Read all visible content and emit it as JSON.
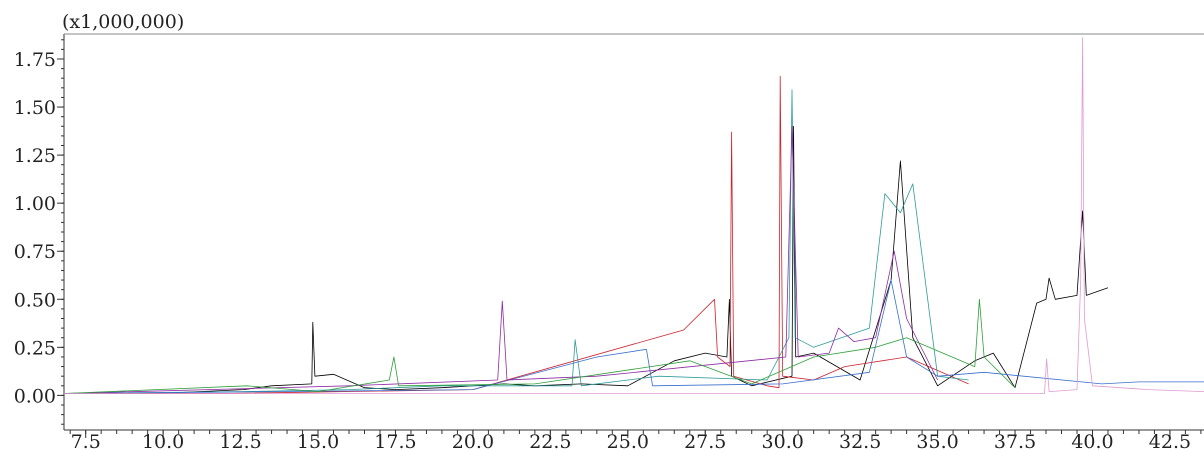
{
  "chart_data": {
    "type": "line",
    "title": "",
    "xlabel": "",
    "ylabel": "",
    "y_multiplier_label": "(x1,000,000)",
    "xlim": [
      6.8,
      43.6
    ],
    "ylim": [
      -0.18,
      1.88
    ],
    "x_ticks": [
      7.5,
      10.0,
      12.5,
      15.0,
      17.5,
      20.0,
      22.5,
      25.0,
      27.5,
      30.0,
      32.5,
      35.0,
      37.5,
      40.0,
      42.5
    ],
    "x_tick_labels": [
      "7.5",
      "10.0",
      "12.5",
      "15.0",
      "17.5",
      "20.0",
      "22.5",
      "25.0",
      "27.5",
      "30.0",
      "32.5",
      "35.0",
      "37.5",
      "40.0",
      "42.5"
    ],
    "y_ticks": [
      0.0,
      0.25,
      0.5,
      0.75,
      1.0,
      1.25,
      1.5,
      1.75
    ],
    "y_tick_labels": [
      "0.00",
      "0.25",
      "0.50",
      "0.75",
      "1.00",
      "1.25",
      "1.50",
      "1.75"
    ],
    "grid": false,
    "legend": "none",
    "series": [
      {
        "color": "#000000",
        "x": [
          6.8,
          9.8,
          12.6,
          13.5,
          14.8,
          14.83,
          14.9,
          15.5,
          16.5,
          17.5,
          19.0,
          20.0,
          21.0,
          22.0,
          23.5,
          25.0,
          26.5,
          27.5,
          28.2,
          28.28,
          28.35,
          29.0,
          30.3,
          30.35,
          30.42,
          31.0,
          32.5,
          33.5,
          33.8,
          34.2,
          35.0,
          36.2,
          36.8,
          37.5,
          38.2,
          38.5,
          38.6,
          38.8,
          39.5,
          39.68,
          39.8,
          40.5
        ],
        "y": [
          0.01,
          0.01,
          0.03,
          0.05,
          0.06,
          0.38,
          0.1,
          0.11,
          0.04,
          0.03,
          0.04,
          0.05,
          0.06,
          0.05,
          0.06,
          0.05,
          0.18,
          0.22,
          0.2,
          0.5,
          0.1,
          0.05,
          0.1,
          1.4,
          0.2,
          0.22,
          0.08,
          0.6,
          1.22,
          0.3,
          0.05,
          0.18,
          0.22,
          0.04,
          0.48,
          0.5,
          0.61,
          0.5,
          0.52,
          0.96,
          0.52,
          0.56
        ]
      },
      {
        "color": "#d0202a",
        "x": [
          6.8,
          12.0,
          20.0,
          26.8,
          27.8,
          27.9,
          28.3,
          28.35,
          28.42,
          29.5,
          29.88,
          29.92,
          30.0,
          31.0,
          32.0,
          34.0,
          36.0
        ],
        "y": [
          0.01,
          0.01,
          0.03,
          0.34,
          0.5,
          0.2,
          0.15,
          1.37,
          0.1,
          0.05,
          0.04,
          1.66,
          0.1,
          0.08,
          0.15,
          0.2,
          0.06
        ]
      },
      {
        "color": "#2e9b9b",
        "x": [
          6.8,
          12.5,
          16.0,
          19.0,
          23.2,
          23.3,
          23.5,
          26.0,
          29.5,
          30.2,
          30.3,
          30.4,
          31.0,
          32.8,
          33.3,
          33.8,
          34.2,
          35.0,
          36.0
        ],
        "y": [
          0.01,
          0.02,
          0.03,
          0.05,
          0.05,
          0.29,
          0.05,
          0.1,
          0.08,
          0.3,
          1.59,
          0.3,
          0.25,
          0.35,
          1.05,
          0.95,
          1.1,
          0.1,
          0.08
        ]
      },
      {
        "color": "#3a6fcf",
        "x": [
          6.8,
          14.0,
          20.0,
          24.0,
          25.6,
          25.8,
          30.0,
          32.8,
          33.5,
          34.0,
          35.0,
          36.5,
          40.3,
          41.5,
          43.6
        ],
        "y": [
          0.01,
          0.02,
          0.03,
          0.2,
          0.24,
          0.05,
          0.06,
          0.12,
          0.6,
          0.2,
          0.1,
          0.12,
          0.06,
          0.07,
          0.07
        ]
      },
      {
        "color": "#8e2aa3",
        "x": [
          6.8,
          16.0,
          20.8,
          20.95,
          21.1,
          24.0,
          30.1,
          30.3,
          30.5,
          31.5,
          31.8,
          32.3,
          33.0,
          33.6,
          34.0,
          35.0
        ],
        "y": [
          0.01,
          0.05,
          0.08,
          0.49,
          0.08,
          0.1,
          0.2,
          1.4,
          0.2,
          0.22,
          0.35,
          0.28,
          0.3,
          0.75,
          0.4,
          0.08
        ]
      },
      {
        "color": "#2f9f3a",
        "x": [
          6.8,
          12.7,
          15.0,
          17.3,
          17.45,
          17.6,
          22.0,
          27.0,
          29.0,
          31.0,
          33.0,
          34.0,
          36.2,
          36.35,
          36.5,
          37.5
        ],
        "y": [
          0.01,
          0.05,
          0.02,
          0.08,
          0.2,
          0.05,
          0.06,
          0.18,
          0.06,
          0.2,
          0.25,
          0.3,
          0.15,
          0.5,
          0.2,
          0.04
        ]
      },
      {
        "color": "#e09ad2",
        "x": [
          6.8,
          37.5,
          38.45,
          38.52,
          38.6,
          39.5,
          39.62,
          39.68,
          39.74,
          40.0,
          41.8,
          43.6
        ],
        "y": [
          0.01,
          0.01,
          0.01,
          0.19,
          0.02,
          0.03,
          0.6,
          1.86,
          0.4,
          0.05,
          0.03,
          0.02
        ]
      }
    ]
  }
}
